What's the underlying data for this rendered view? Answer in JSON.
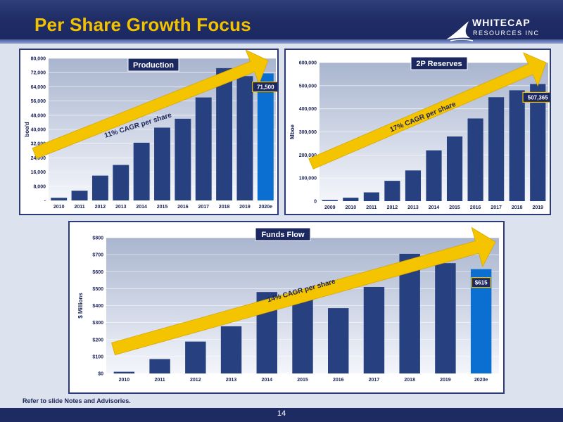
{
  "slide": {
    "title": "Per Share Growth Focus",
    "logo_line1": "WHITECAP",
    "logo_line2": "RESOURCES INC",
    "footnote": "Refer to slide Notes and Advisories.",
    "page_number": "14"
  },
  "colors": {
    "title": "#f2c200",
    "header": "#1f2c66",
    "bar": "#27407f",
    "bar_estimate": "#0a6fd1",
    "arrow": "#f5c400",
    "plot_bg_top": "#a9b5cf",
    "plot_bg_bottom": "#f4f6fb"
  },
  "chart_data": [
    {
      "type": "bar",
      "title": "Production",
      "ylabel": "boe/d",
      "categories": [
        "2010",
        "2011",
        "2012",
        "2013",
        "2014",
        "2015",
        "2016",
        "2017",
        "2018",
        "2019",
        "2020e"
      ],
      "values": [
        1500,
        5500,
        14000,
        20000,
        32500,
        41000,
        46000,
        58000,
        74500,
        70000,
        71500
      ],
      "ylim": [
        0,
        80000
      ],
      "yticks": [
        0,
        8000,
        16000,
        24000,
        32000,
        40000,
        48000,
        56000,
        64000,
        72000,
        80000
      ],
      "ytick_labels": [
        "-",
        "8,000",
        "16,000",
        "24,000",
        "32,000",
        "40,000",
        "48,000",
        "56,000",
        "64,000",
        "72,000",
        "80,000"
      ],
      "highlight_index": 10,
      "data_label": "71,500",
      "annotation": "11% CAGR per share"
    },
    {
      "type": "bar",
      "title": "2P Reserves",
      "ylabel": "Mboe",
      "categories": [
        "2009",
        "2010",
        "2011",
        "2012",
        "2013",
        "2014",
        "2015",
        "2016",
        "2017",
        "2018",
        "2019"
      ],
      "values": [
        5000,
        15000,
        38000,
        88000,
        133000,
        220000,
        280000,
        358000,
        450000,
        480000,
        507365
      ],
      "ylim": [
        0,
        600000
      ],
      "yticks": [
        0,
        100000,
        200000,
        300000,
        400000,
        500000,
        600000
      ],
      "ytick_labels": [
        "0",
        "100,000",
        "200,000",
        "300,000",
        "400,000",
        "500,000",
        "600,000"
      ],
      "highlight_index": -1,
      "data_label": "507,365",
      "annotation": "17% CAGR per share"
    },
    {
      "type": "bar",
      "title": "Funds Flow",
      "ylabel": "$ Millions",
      "categories": [
        "2010",
        "2011",
        "2012",
        "2013",
        "2014",
        "2015",
        "2016",
        "2017",
        "2018",
        "2019",
        "2020e"
      ],
      "values": [
        10,
        85,
        188,
        278,
        480,
        455,
        385,
        510,
        705,
        650,
        615
      ],
      "ylim": [
        0,
        800
      ],
      "yticks": [
        0,
        100,
        200,
        300,
        400,
        500,
        600,
        700,
        800
      ],
      "ytick_labels": [
        "$0",
        "$100",
        "$200",
        "$300",
        "$400",
        "$500",
        "$600",
        "$700",
        "$800"
      ],
      "highlight_index": 10,
      "data_label": "$615",
      "annotation": "14% CAGR per share"
    }
  ]
}
